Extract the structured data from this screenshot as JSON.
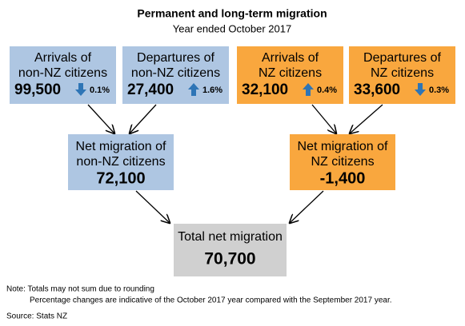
{
  "title": "Permanent and long-term migration",
  "subtitle": "Year ended October 2017",
  "boxes": [
    {
      "label": [
        "Arrivals of",
        "non-NZ citizens"
      ],
      "value": "99,500",
      "change": "0.1%"
    },
    {
      "label": [
        "Departures of",
        "non-NZ citizens"
      ],
      "value": "27,400",
      "change": "1.6%"
    },
    {
      "label": [
        "Arrivals of",
        "NZ citizens"
      ],
      "value": "32,100",
      "change": "0.4%"
    },
    {
      "label": [
        "Departures of",
        "NZ citizens"
      ],
      "value": "33,600",
      "change": "0.3%"
    }
  ],
  "net": [
    {
      "label": [
        "Net migration of",
        "non-NZ citizens"
      ],
      "value": "72,100"
    },
    {
      "label": [
        "Net migration of",
        "NZ citizens"
      ],
      "value": "-1,400"
    }
  ],
  "total": {
    "label": "Total net migration",
    "value": "70,700"
  },
  "notes": [
    "Note: Totals may not sum due to rounding",
    "Percentage changes are indicative of the October 2017 year compared with the September 2017 year."
  ],
  "source": "Source: Stats NZ"
}
